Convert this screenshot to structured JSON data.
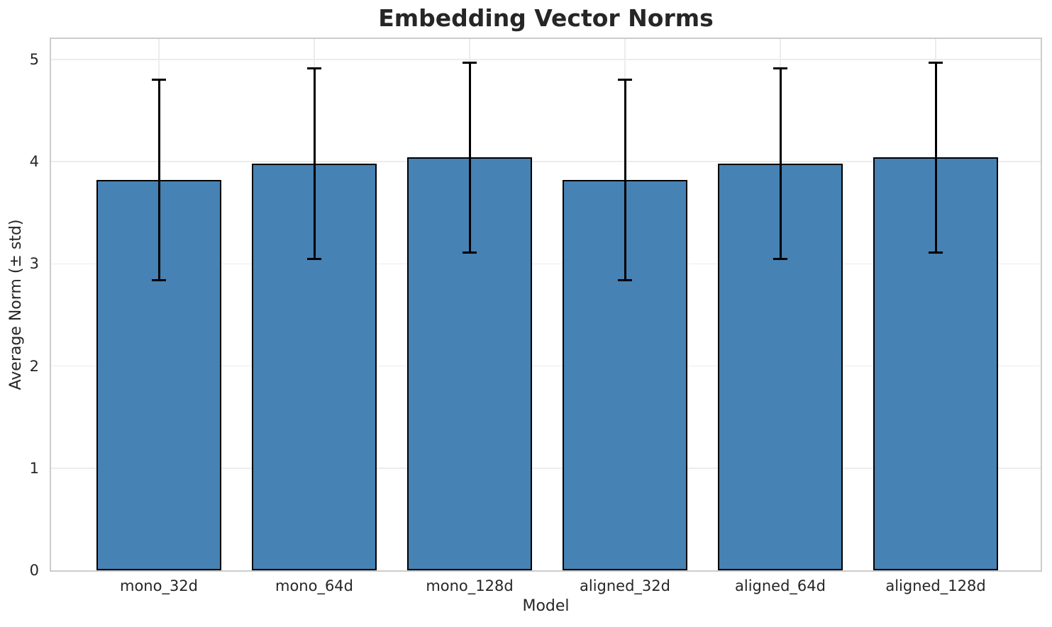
{
  "chart_data": {
    "type": "bar",
    "title": "Embedding Vector Norms",
    "xlabel": "Model",
    "ylabel": "Average Norm (± std)",
    "categories": [
      "mono_32d",
      "mono_64d",
      "mono_128d",
      "aligned_32d",
      "aligned_64d",
      "aligned_128d"
    ],
    "values": [
      3.82,
      3.98,
      4.04,
      3.82,
      3.98,
      4.04
    ],
    "errors": [
      0.98,
      0.93,
      0.93,
      0.98,
      0.93,
      0.93
    ],
    "error_whisker_tops": [
      4.8,
      4.91,
      4.97,
      4.8,
      4.91,
      4.97
    ],
    "error_whisker_bottoms": [
      2.84,
      3.05,
      3.11,
      2.84,
      3.05,
      3.11
    ],
    "ylim": [
      0,
      5.2
    ],
    "y_ticks": [
      0,
      1,
      2,
      3,
      4,
      5
    ],
    "grid": "horizontal gridlines at integer ticks and vertical gridlines at bar centers",
    "legend": "none",
    "colors": {
      "bar_fill": "#4682B4",
      "bar_edge": "#000000",
      "error_bar": "#000000",
      "grid_line": "#ececec",
      "spine": "#cccccc",
      "text": "#262626"
    }
  }
}
